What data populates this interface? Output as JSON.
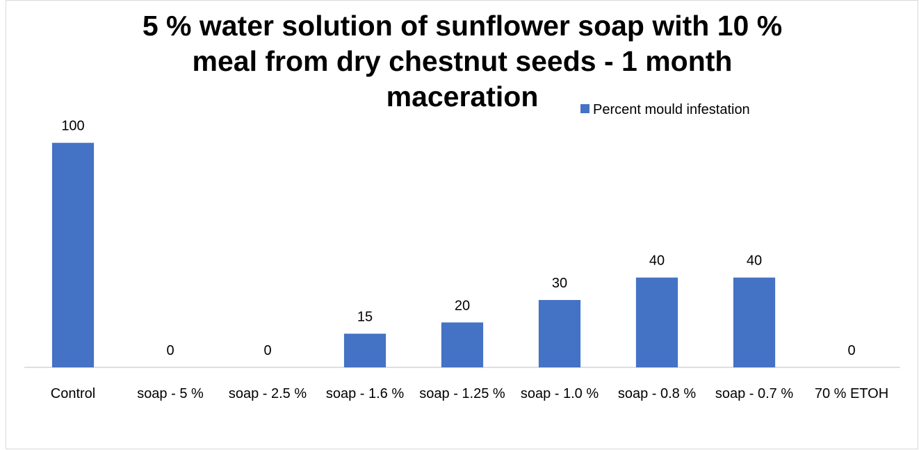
{
  "chart_data": {
    "type": "bar",
    "title": "5 % water solution of sunflower soap with 10 % meal from dry chestnut seeds  - 1 month maceration",
    "categories": [
      "Control",
      "soap - 5 %",
      "soap - 2.5 %",
      "soap - 1.6 %",
      "soap - 1.25 %",
      "soap - 1.0 %",
      "soap - 0.8 %",
      "soap - 0.7 %",
      "70 % ETOH"
    ],
    "series": [
      {
        "name": "Percent mould infestation",
        "color": "#4472c4",
        "values": [
          100,
          0,
          0,
          15,
          20,
          30,
          40,
          40,
          0
        ]
      }
    ],
    "ylim": [
      0,
      120
    ],
    "legend": "top-right"
  }
}
